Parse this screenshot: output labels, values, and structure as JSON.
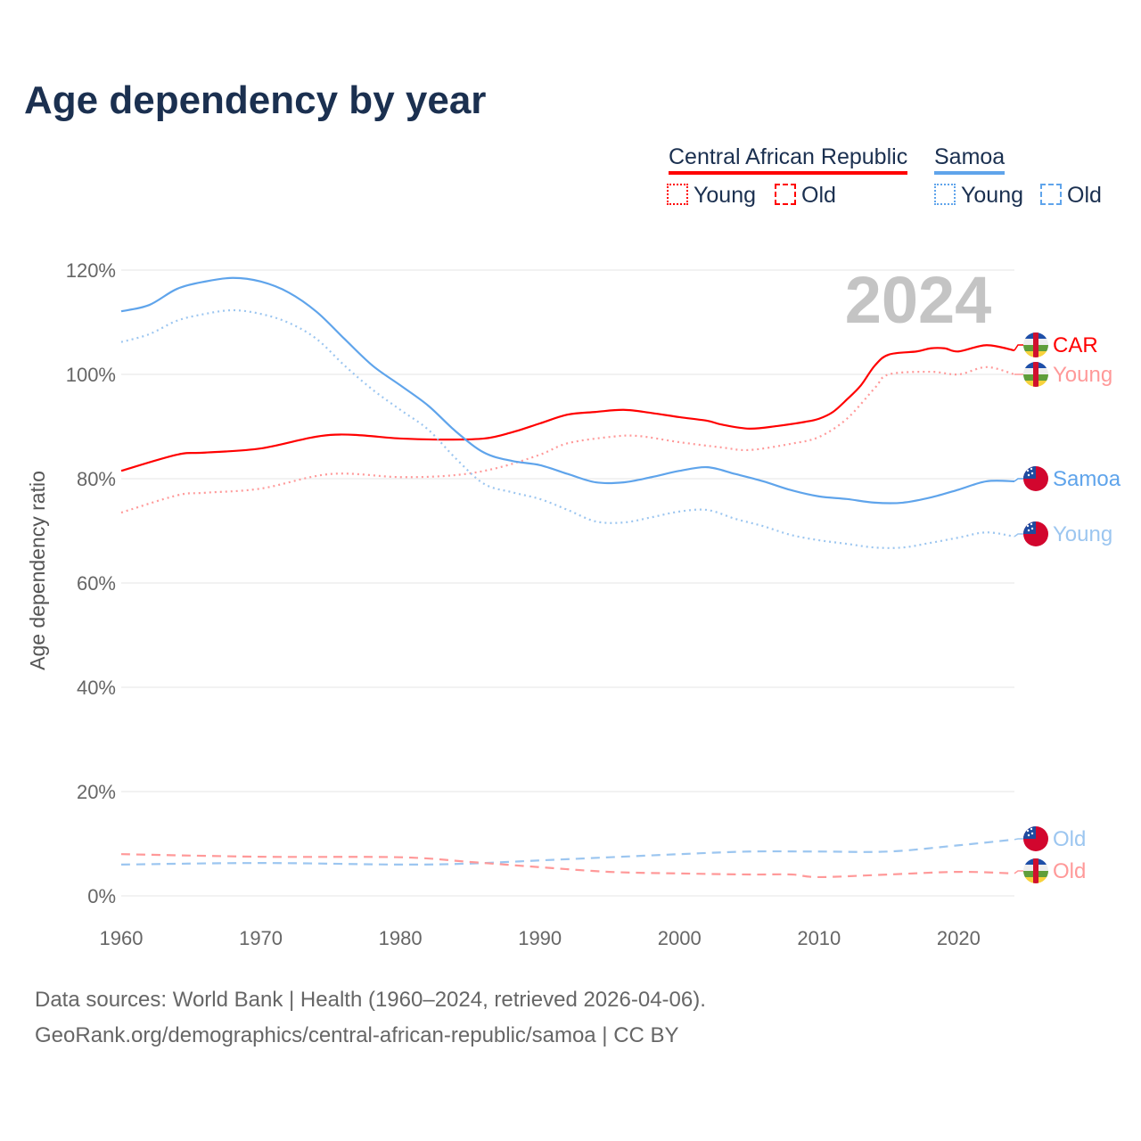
{
  "title": "Age dependency by year",
  "legend": {
    "countries": [
      {
        "name": "Central African Republic",
        "color": "#ff0000",
        "young": "Young",
        "old": "Old"
      },
      {
        "name": "Samoa",
        "color": "#5fa4eb",
        "young": "Young",
        "old": "Old"
      }
    ]
  },
  "year_label": "2024",
  "footer": {
    "line1": "Data sources: World Bank | Health (1960–2024, retrieved 2026-04-06).",
    "line2": "GeoRank.org/demographics/central-african-republic/samoa | CC BY"
  },
  "end_labels": [
    "CAR",
    "Young",
    "Samoa",
    "Young",
    "Old",
    "Old"
  ],
  "chart_data": {
    "type": "line",
    "title": "Age dependency by year",
    "xlabel": "",
    "ylabel": "Age dependency ratio",
    "xlim": [
      1960,
      2024
    ],
    "ylim": [
      0,
      120
    ],
    "x_ticks": [
      "1960",
      "1970",
      "1980",
      "1990",
      "2000",
      "2010",
      "2020"
    ],
    "y_ticks": [
      "0%",
      "20%",
      "40%",
      "60%",
      "80%",
      "100%",
      "120%"
    ],
    "grid": true,
    "legend_position": "top-right",
    "series": [
      {
        "name": "CAR",
        "country": "Central African Republic",
        "kind": "total",
        "color": "#ff0000",
        "style": "solid",
        "x": [
          1960,
          1964,
          1966,
          1970,
          1975,
          1980,
          1983,
          1986,
          1988,
          1990,
          1992,
          1994,
          1996,
          1998,
          2000,
          2002,
          2003,
          2005,
          2007,
          2009,
          2010,
          2011,
          2012,
          2013,
          2014,
          2015,
          2017,
          2018,
          2019,
          2020,
          2022,
          2024
        ],
        "y": [
          81.5,
          84.6,
          85,
          85.8,
          88.4,
          87.7,
          87.5,
          87.7,
          88.9,
          90.6,
          92.3,
          92.8,
          93.2,
          92.6,
          91.8,
          91.1,
          90.4,
          89.6,
          90.1,
          90.9,
          91.5,
          92.8,
          95.2,
          97.9,
          101.7,
          103.8,
          104.4,
          105,
          105,
          104.4,
          105.6,
          104.6
        ]
      },
      {
        "name": "Young",
        "country": "Central African Republic",
        "kind": "young",
        "color": "#ff9999",
        "style": "dotted",
        "x": [
          1960,
          1964,
          1966,
          1970,
          1975,
          1980,
          1984,
          1987,
          1990,
          1992,
          1995,
          1997,
          2000,
          2003,
          2005,
          2008,
          2010,
          2012,
          2014,
          2015,
          2018,
          2020,
          2022,
          2024
        ],
        "y": [
          73.5,
          76.8,
          77.3,
          78.1,
          80.9,
          80.3,
          80.7,
          82.1,
          84.6,
          86.8,
          88,
          88.2,
          87,
          86,
          85.5,
          86.7,
          88,
          91.5,
          97.4,
          100,
          100.5,
          100,
          101.4,
          100
        ]
      },
      {
        "name": "Samoa",
        "country": "Samoa",
        "kind": "total",
        "color": "#5fa4eb",
        "style": "solid",
        "x": [
          1960,
          1962,
          1964,
          1966,
          1968,
          1970,
          1972,
          1974,
          1976,
          1978,
          1980,
          1982,
          1984,
          1986,
          1988,
          1990,
          1992,
          1994,
          1996,
          1998,
          2000,
          2002,
          2004,
          2006,
          2008,
          2010,
          2012,
          2014,
          2016,
          2018,
          2020,
          2022,
          2024
        ],
        "y": [
          112.1,
          113.3,
          116.4,
          117.8,
          118.5,
          117.8,
          115.7,
          112,
          106.8,
          101.7,
          97.9,
          94,
          89,
          85,
          83.4,
          82.6,
          80.9,
          79.3,
          79.3,
          80.3,
          81.5,
          82.2,
          80.9,
          79.5,
          77.8,
          76.6,
          76.1,
          75.4,
          75.4,
          76.4,
          77.9,
          79.5,
          79.5
        ]
      },
      {
        "name": "Young",
        "country": "Samoa",
        "kind": "young",
        "color": "#9cc6f0",
        "style": "dotted",
        "x": [
          1960,
          1962,
          1964,
          1966,
          1968,
          1970,
          1972,
          1974,
          1976,
          1978,
          1980,
          1982,
          1984,
          1986,
          1988,
          1990,
          1992,
          1994,
          1996,
          1998,
          2000,
          2002,
          2004,
          2006,
          2008,
          2010,
          2012,
          2014,
          2016,
          2018,
          2020,
          2022,
          2024
        ],
        "y": [
          106.2,
          107.7,
          110.3,
          111.6,
          112.3,
          111.6,
          109.9,
          106.8,
          101.7,
          97.1,
          93.2,
          89.4,
          83.8,
          79,
          77.4,
          76.1,
          74,
          71.8,
          71.6,
          72.6,
          73.7,
          74,
          72.3,
          70.9,
          69.2,
          68.2,
          67.5,
          66.8,
          66.8,
          67.7,
          68.7,
          69.7,
          68.9
        ]
      },
      {
        "name": "Old",
        "country": "Samoa",
        "kind": "old",
        "color": "#9cc6f0",
        "style": "dashed",
        "x": [
          1960,
          1970,
          1980,
          1985,
          1990,
          1995,
          2000,
          2005,
          2010,
          2015,
          2020,
          2024
        ],
        "y": [
          6,
          6.3,
          6,
          6.2,
          6.8,
          7.4,
          8,
          8.5,
          8.5,
          8.5,
          9.7,
          10.8
        ]
      },
      {
        "name": "Old",
        "country": "Central African Republic",
        "kind": "old",
        "color": "#ff9999",
        "style": "dashed",
        "x": [
          1960,
          1970,
          1980,
          1985,
          1990,
          1995,
          2000,
          2005,
          2008,
          2010,
          2015,
          2020,
          2024
        ],
        "y": [
          8,
          7.5,
          7.4,
          6.5,
          5.5,
          4.6,
          4.3,
          4.1,
          4.1,
          3.6,
          4.1,
          4.6,
          4.3
        ]
      }
    ]
  }
}
